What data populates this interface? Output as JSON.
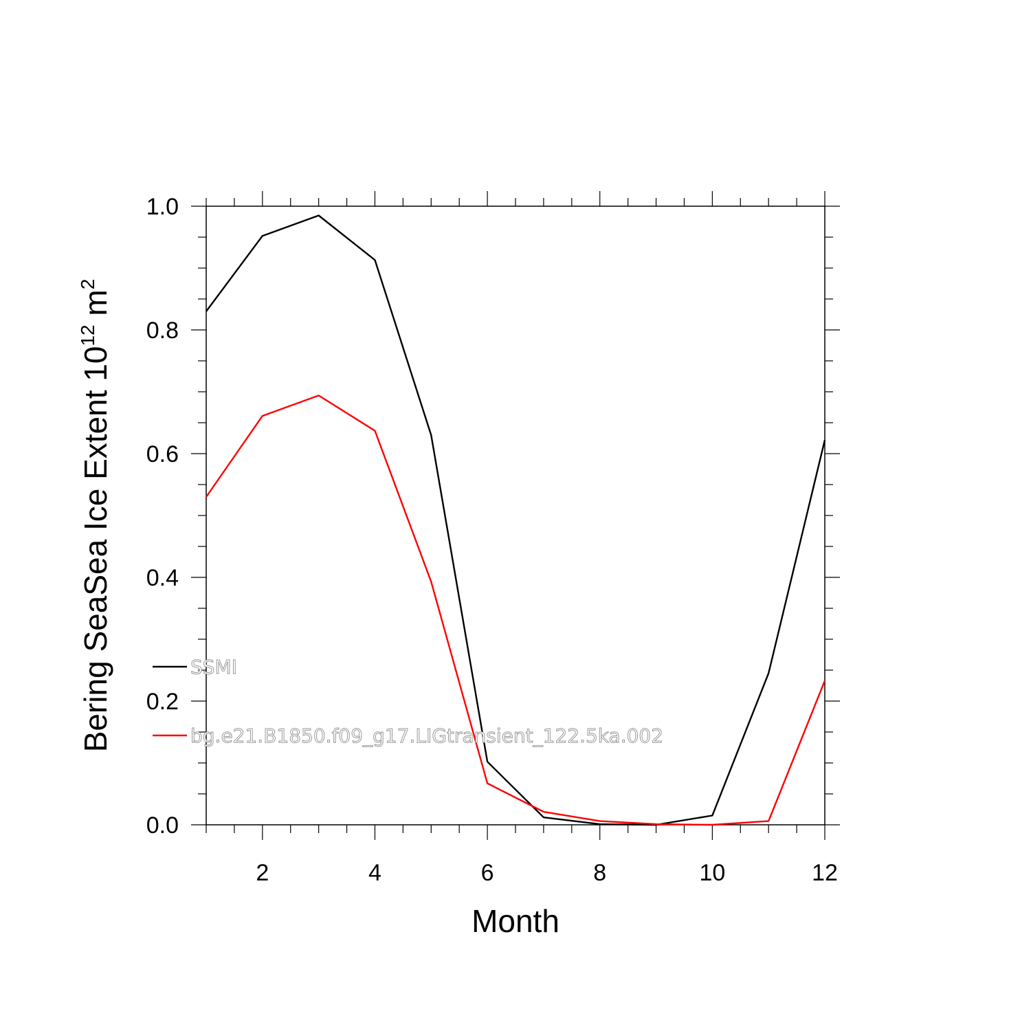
{
  "chart_data": {
    "type": "line",
    "title": "",
    "xlabel": "Month",
    "ylabel": {
      "main": "Bering SeaSea Ice Extent 10",
      "superscript1": "12",
      "unit": " m",
      "superscript2": "2"
    },
    "xlim": [
      1,
      12
    ],
    "ylim": [
      0.0,
      1.0
    ],
    "x": [
      1,
      2,
      3,
      4,
      5,
      6,
      7,
      8,
      9,
      10,
      11,
      12
    ],
    "x_ticks": [
      2,
      4,
      6,
      8,
      10,
      12
    ],
    "x_tick_labels": [
      "2",
      "4",
      "6",
      "8",
      "10",
      "12"
    ],
    "y_ticks": [
      0.0,
      0.2,
      0.4,
      0.6,
      0.8,
      1.0
    ],
    "y_tick_labels": [
      "0.0",
      "0.2",
      "0.4",
      "0.6",
      "0.8",
      "1.0"
    ],
    "grid": false,
    "legend_position": "inside lower-left",
    "series": [
      {
        "name": "SSMI",
        "color": "#000000",
        "values": [
          0.83,
          0.952,
          0.985,
          0.913,
          0.63,
          0.102,
          0.012,
          0.001,
          0.0,
          0.015,
          0.245,
          0.622
        ]
      },
      {
        "name": "bg.e21.B1850.f09_g17.LIGtransient_122.5ka.002",
        "color": "#ff0000",
        "values": [
          0.53,
          0.661,
          0.694,
          0.637,
          0.393,
          0.067,
          0.021,
          0.006,
          0.001,
          0.0,
          0.006,
          0.233
        ]
      }
    ]
  }
}
